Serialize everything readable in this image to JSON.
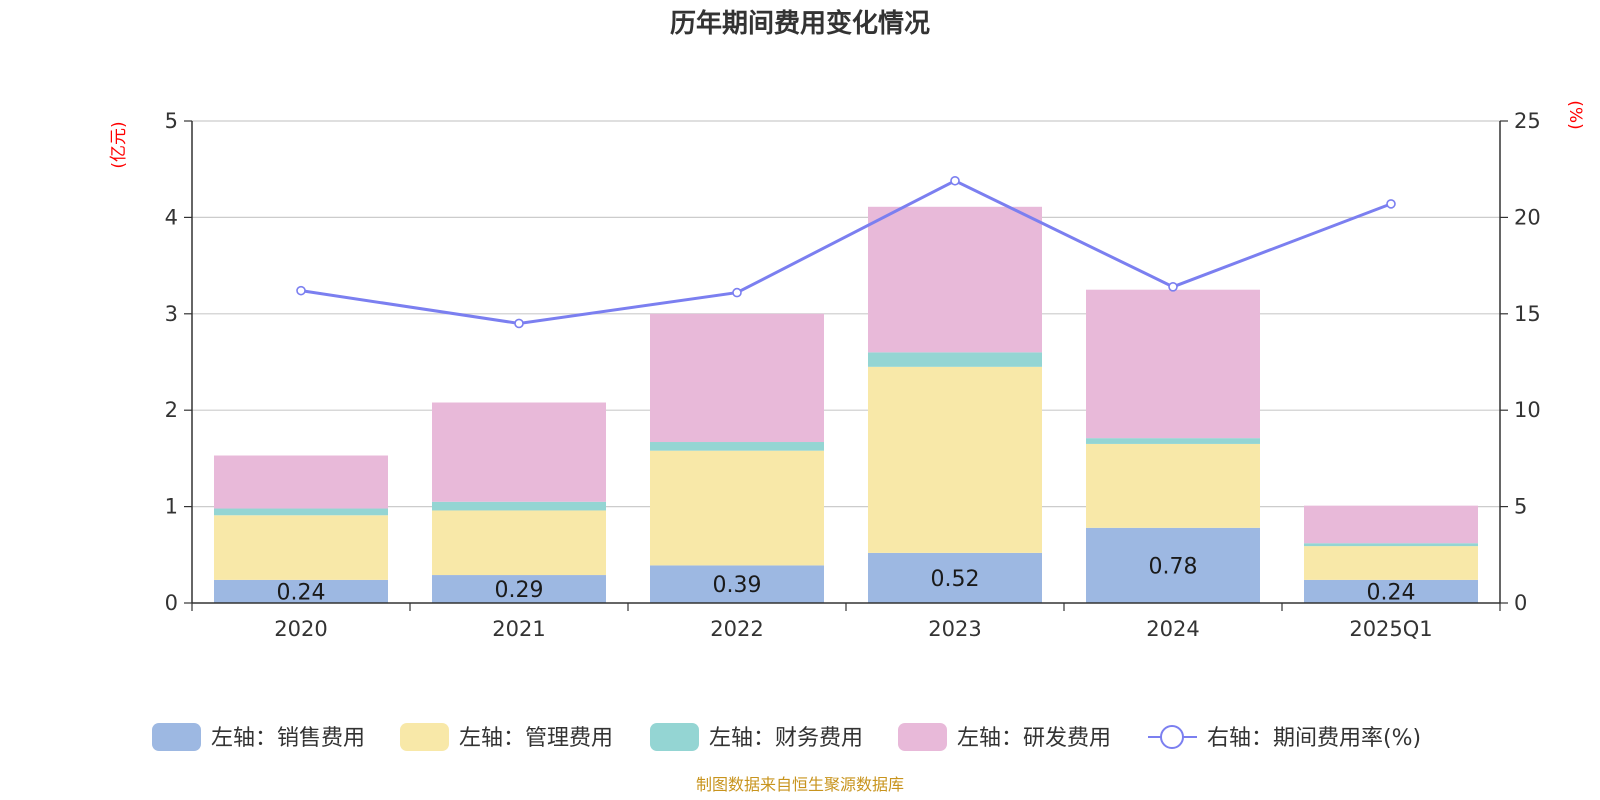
{
  "chart_data": {
    "type": "bar",
    "stacked": true,
    "title": "历年期间费用变化情况",
    "categories": [
      "2020",
      "2021",
      "2022",
      "2023",
      "2024",
      "2025Q1"
    ],
    "left_axis": {
      "unit_label": "(亿元)",
      "ylim": [
        0,
        5
      ],
      "ticks": [
        "0",
        "1",
        "2",
        "3",
        "4",
        "5"
      ]
    },
    "right_axis": {
      "unit_label": "(%)",
      "ylim": [
        0,
        25
      ],
      "ticks": [
        "0",
        "5",
        "10",
        "15",
        "20",
        "25"
      ]
    },
    "series": [
      {
        "name": "左轴：销售费用",
        "axis": "left",
        "color": "#9db8e2",
        "values": [
          0.24,
          0.29,
          0.39,
          0.52,
          0.78,
          0.24
        ],
        "labels": [
          "0.24",
          "0.29",
          "0.39",
          "0.52",
          "0.78",
          "0.24"
        ]
      },
      {
        "name": "左轴：管理费用",
        "axis": "left",
        "color": "#f8e8a8",
        "values": [
          0.67,
          0.67,
          1.19,
          1.93,
          0.87,
          0.35
        ]
      },
      {
        "name": "左轴：财务费用",
        "axis": "left",
        "color": "#94d5d3",
        "values": [
          0.07,
          0.09,
          0.09,
          0.15,
          0.06,
          0.03
        ]
      },
      {
        "name": "左轴：研发费用",
        "axis": "left",
        "color": "#e8b9d9",
        "values": [
          0.55,
          1.03,
          1.33,
          1.51,
          1.54,
          0.39
        ]
      },
      {
        "name": "右轴：期间费用率(%)",
        "axis": "right",
        "type": "line",
        "color": "#7b7ff0",
        "values": [
          16.2,
          14.5,
          16.1,
          21.9,
          16.4,
          20.7
        ]
      }
    ],
    "legend_position": "bottom",
    "grid": true
  },
  "source_note": "制图数据来自恒生聚源数据库"
}
